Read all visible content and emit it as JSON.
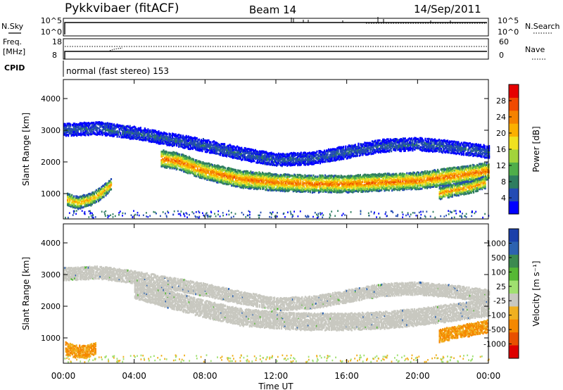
{
  "header": {
    "station": "Pykkvibaer (fitACF)",
    "beam": "Beam 14",
    "date": "14/Sep/2011"
  },
  "top_panels": {
    "nsky_label": "N.Sky",
    "nsky_ticks": [
      "10^5",
      "10^0"
    ],
    "nsearch_label": "N.Search",
    "nsearch_ticks": [
      "10^5",
      "10^0"
    ],
    "freq_label": "Freq.",
    "freq_unit": "[MHz]",
    "freq_ticks": [
      "18",
      "8"
    ],
    "nave_label": "Nave",
    "nave_ticks": [
      "60",
      "0"
    ],
    "cpid_label": "CPID",
    "cpid_text": "normal (fast stereo) 153"
  },
  "colors": {
    "power_scale": [
      "#0000ff",
      "#234bb4",
      "#2e7d60",
      "#4fae4a",
      "#a2d43c",
      "#f0e120",
      "#fbb000",
      "#f58200",
      "#f04a00",
      "#e60000"
    ],
    "velocity_scale": [
      "#1a3faa",
      "#2c62b0",
      "#3c8a50",
      "#56b835",
      "#a0e070",
      "#c8c8c0",
      "#f0b020",
      "#f58800",
      "#e85000",
      "#dd0000"
    ],
    "ground_scatter": "#c8c8c0"
  },
  "chart_data": [
    {
      "type": "heatmap",
      "title": "",
      "xlabel": "Time UT",
      "ylabel": "Slant Range [km]",
      "x_ticks": [
        "00:00",
        "04:00",
        "08:00",
        "12:00",
        "16:00",
        "20:00",
        "00:00"
      ],
      "x_range_hours": [
        0,
        24
      ],
      "y_ticks": [
        1000,
        2000,
        3000,
        4000
      ],
      "ylim": [
        200,
        4600
      ],
      "colorbar": {
        "label": "Power [dB]",
        "ticks": [
          4,
          8,
          12,
          16,
          20,
          24,
          28
        ],
        "range": [
          0,
          32
        ]
      },
      "features": [
        {
          "name": "upper band",
          "t_hours": [
            0,
            2,
            4,
            6,
            8,
            10,
            12,
            14,
            16,
            18,
            20,
            22,
            24
          ],
          "range_km": [
            3000,
            3050,
            2900,
            2700,
            2500,
            2250,
            2050,
            2100,
            2300,
            2500,
            2550,
            2450,
            2300
          ],
          "power_db": 6
        },
        {
          "name": "main band",
          "t_hours": [
            5.5,
            6.5,
            8,
            10,
            12,
            14,
            16,
            18,
            20,
            22,
            24
          ],
          "range_km": [
            2100,
            2000,
            1700,
            1450,
            1350,
            1300,
            1300,
            1350,
            1400,
            1550,
            1700
          ],
          "power_db": 26
        },
        {
          "name": "early near-range echoes",
          "t_hours": [
            0.2,
            0.8,
            1.5,
            2.1,
            2.7
          ],
          "range_km": [
            800,
            700,
            800,
            1000,
            1300
          ],
          "power_db": 22
        },
        {
          "name": "late near-range echoes",
          "t_hours": [
            21.2,
            22,
            23,
            23.8
          ],
          "range_km": [
            1000,
            1100,
            1200,
            1350
          ],
          "power_db": 24
        }
      ]
    },
    {
      "type": "heatmap",
      "title": "",
      "xlabel": "Time UT",
      "ylabel": "Slant Range [km]",
      "x_ticks": [
        "00:00",
        "04:00",
        "08:00",
        "12:00",
        "16:00",
        "20:00",
        "00:00"
      ],
      "x_range_hours": [
        0,
        24
      ],
      "y_ticks": [
        1000,
        2000,
        3000,
        4000
      ],
      "ylim": [
        200,
        4600
      ],
      "colorbar": {
        "label": "Velocity [m s⁻¹]",
        "ticks": [
          1000,
          500,
          100,
          25,
          -25,
          -100,
          -500,
          -1000
        ]
      },
      "features": [
        {
          "name": "ground scatter upper band",
          "t_hours": [
            0,
            2,
            4,
            6,
            8,
            10,
            12,
            14,
            16,
            18,
            20,
            22,
            24
          ],
          "range_km": [
            3000,
            3050,
            2900,
            2700,
            2500,
            2250,
            2050,
            2100,
            2300,
            2500,
            2550,
            2450,
            2300
          ],
          "velocity": 0
        },
        {
          "name": "ground scatter main band",
          "t_hours": [
            4,
            6,
            8,
            10,
            12,
            14,
            16,
            18,
            20,
            22,
            24
          ],
          "range_km": [
            2500,
            2200,
            1900,
            1650,
            1550,
            1500,
            1500,
            1550,
            1650,
            1800,
            1950
          ],
          "velocity": 0
        },
        {
          "name": "early near-range flow",
          "t_hours": [
            0.1,
            0.6,
            1.2,
            1.8
          ],
          "range_km": [
            650,
            550,
            550,
            650
          ],
          "velocity": -200
        },
        {
          "name": "late near-range flow",
          "t_hours": [
            21.2,
            22,
            23,
            23.9
          ],
          "range_km": [
            1050,
            1150,
            1250,
            1350
          ],
          "velocity": -300
        }
      ]
    }
  ]
}
